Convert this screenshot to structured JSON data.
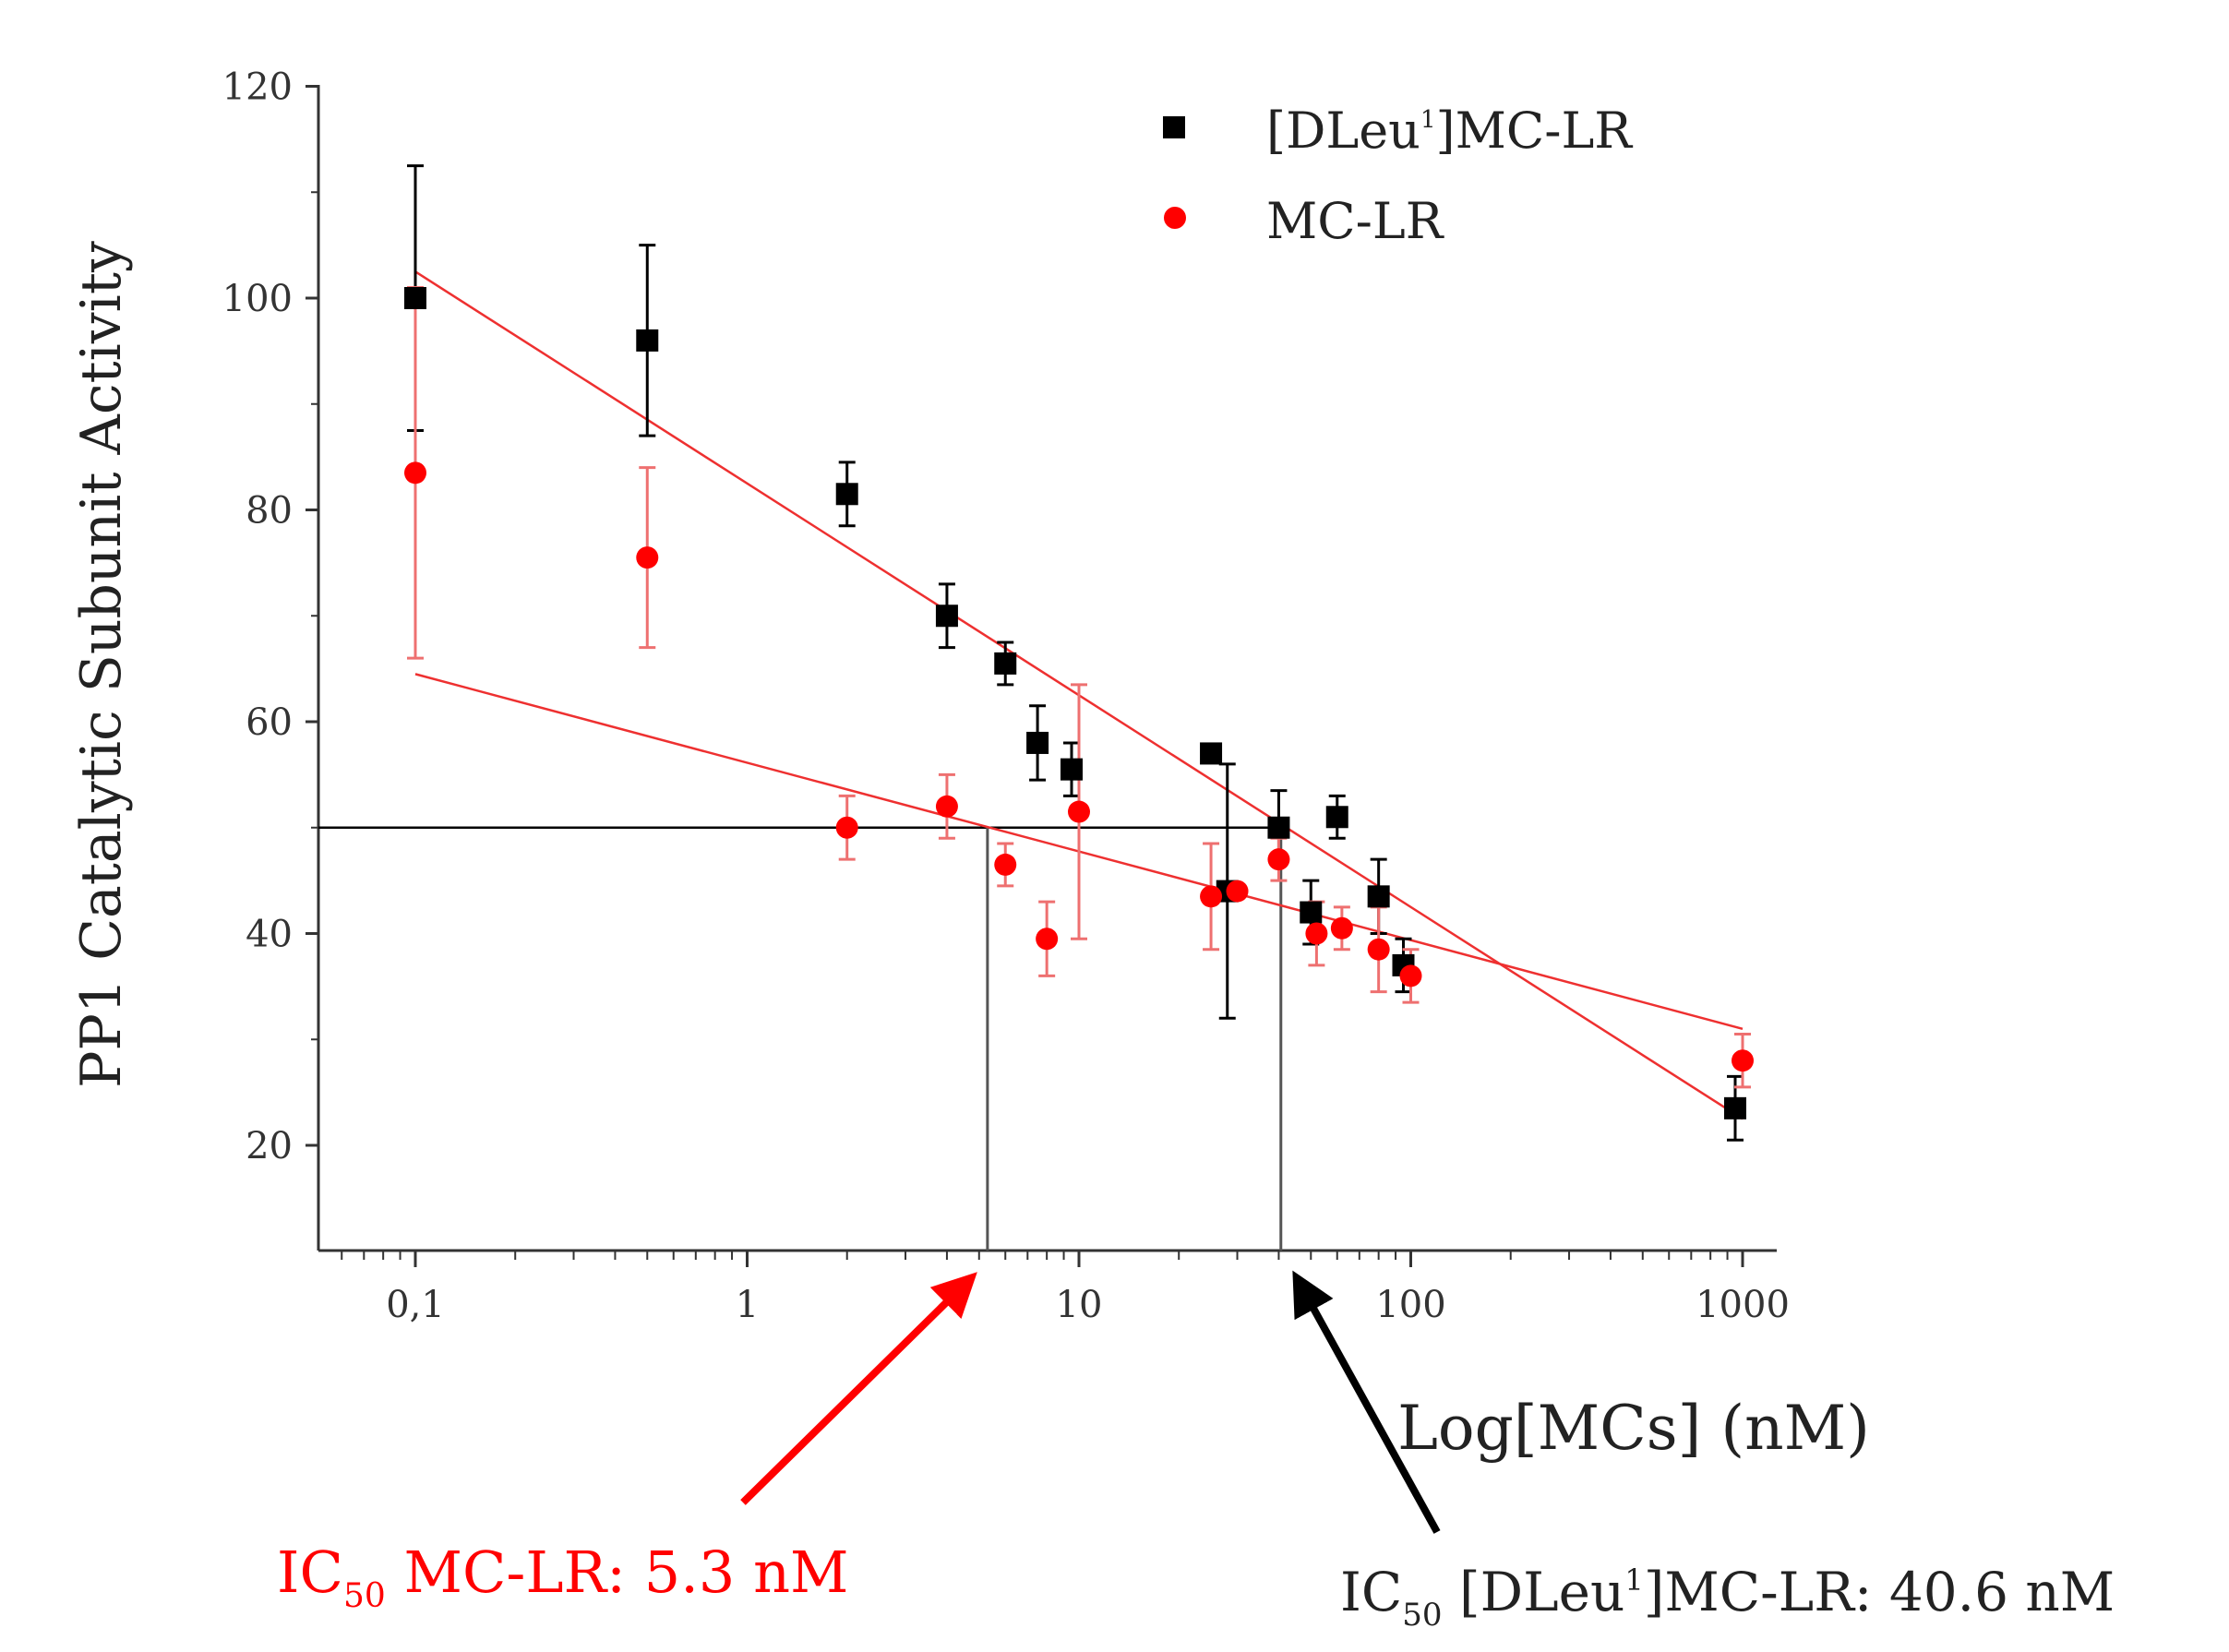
{
  "chart_data": {
    "type": "scatter",
    "x_scale": "log",
    "xlabel": "Log[MCs] (nM)",
    "ylabel": "PP1 Catalytic Subunit Activity",
    "xlim": [
      0.05,
      1200
    ],
    "ylim": [
      10,
      120
    ],
    "x_ticks": [
      {
        "value": 0.1,
        "label": "0,1"
      },
      {
        "value": 1,
        "label": "1"
      },
      {
        "value": 10,
        "label": "10"
      },
      {
        "value": 100,
        "label": "100"
      },
      {
        "value": 1000,
        "label": "1000"
      }
    ],
    "y_ticks": [
      {
        "value": 20,
        "label": "20"
      },
      {
        "value": 40,
        "label": "40"
      },
      {
        "value": 60,
        "label": "60"
      },
      {
        "value": 80,
        "label": "80"
      },
      {
        "value": 100,
        "label": "100"
      },
      {
        "value": 120,
        "label": "120"
      }
    ],
    "series": [
      {
        "name": "[DLeu¹]MC-LR",
        "legend_label": "[DLeu",
        "legend_sup": "1",
        "legend_suffix": "]MC-LR",
        "marker": "square",
        "color": "#000000",
        "error_color": "#000000",
        "x": [
          0.1,
          0.5,
          2,
          4,
          6,
          7.5,
          9.5,
          25,
          28,
          40,
          50,
          60,
          80,
          95,
          950
        ],
        "y": [
          100,
          96,
          81.5,
          70,
          65.5,
          58,
          55.5,
          57,
          44,
          50,
          42,
          51,
          43.5,
          37,
          23.5
        ],
        "yerr": [
          12.5,
          9,
          3,
          3,
          2,
          3.5,
          2.5,
          0,
          12,
          3.5,
          3,
          2,
          3.5,
          2.5,
          3
        ]
      },
      {
        "name": "MC-LR",
        "legend_label": "MC-LR",
        "marker": "circle",
        "color": "#ff0000",
        "error_color": "#ee7070",
        "x": [
          0.1,
          0.5,
          2,
          4,
          6,
          8,
          10,
          25,
          30,
          40,
          52,
          62,
          80,
          100,
          1000
        ],
        "y": [
          83.5,
          75.5,
          50,
          52,
          46.5,
          39.5,
          51.5,
          43.5,
          44,
          47,
          40,
          40.5,
          38.5,
          36,
          28
        ],
        "yerr": [
          17.5,
          8.5,
          3,
          3,
          2,
          3.5,
          12,
          5,
          0,
          2,
          3,
          2,
          4,
          2.5,
          2.5
        ]
      }
    ],
    "fit_lines": [
      {
        "series": "[DLeu¹]MC-LR",
        "color": "#ee3030",
        "x": [
          0.1,
          1000
        ],
        "y": [
          102.5,
          22.5
        ]
      },
      {
        "series": "MC-LR",
        "color": "#ee3030",
        "x": [
          0.1,
          1000
        ],
        "y": [
          64.5,
          31
        ]
      }
    ],
    "reference_line": {
      "y": 50,
      "x_from": 0.05,
      "x_to": 40.6
    },
    "ic50_markers": [
      {
        "x": 5.3,
        "y": 50,
        "color": "#555555"
      },
      {
        "x": 40.6,
        "y": 50,
        "color": "#555555"
      }
    ],
    "annotations": [
      {
        "id": "ic50-mclr",
        "prefix": "IC",
        "sub": "50",
        "text": " MC-LR: 5.3 nM",
        "color": "#ff0000"
      },
      {
        "id": "ic50-dleu",
        "prefix": "IC",
        "sub": "50",
        "text": " [DLeu",
        "sup": "1",
        "suffix": "]MC-LR: 40.6 nM",
        "color": "#222222"
      }
    ]
  }
}
